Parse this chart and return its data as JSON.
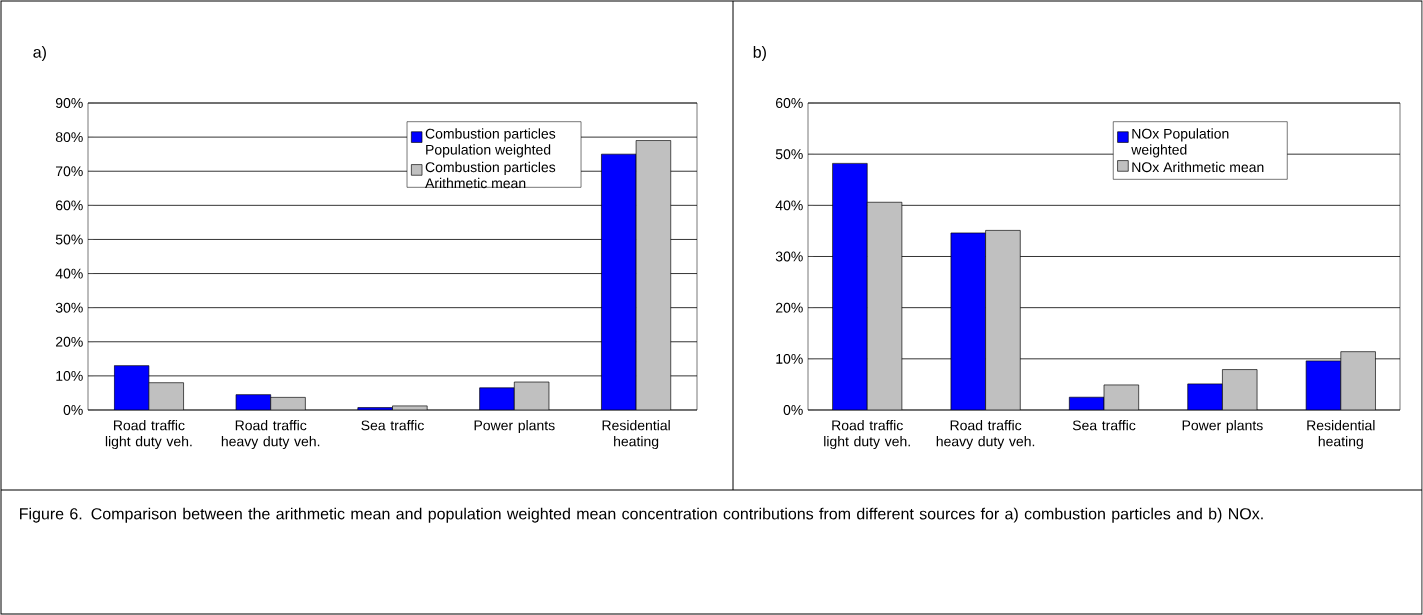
{
  "chart_data": [
    {
      "type": "bar",
      "title": "a)",
      "categories": [
        "Road traffic light duty veh.",
        "Road traffic heavy duty veh.",
        "Sea traffic",
        "Power plants",
        "Residential heating"
      ],
      "series": [
        {
          "name": "Combustion particles Population weighted",
          "color": "#0000ff",
          "values": [
            13,
            4.5,
            0.7,
            6.5,
            75
          ]
        },
        {
          "name": "Combustion particles Arithmetic mean",
          "color": "#c0c0c0",
          "values": [
            8,
            3.7,
            1.2,
            8.2,
            79
          ]
        }
      ],
      "ylim": [
        0,
        90
      ],
      "yticks": [
        {
          "value": 0,
          "label": "0%"
        },
        {
          "value": 10,
          "label": "10%"
        },
        {
          "value": 20,
          "label": "20%"
        },
        {
          "value": 30,
          "label": "30%"
        },
        {
          "value": 40,
          "label": "40%"
        },
        {
          "value": 50,
          "label": "50%"
        },
        {
          "value": 60,
          "label": "60%"
        },
        {
          "value": 70,
          "label": "70%"
        },
        {
          "value": 80,
          "label": "80%"
        },
        {
          "value": 90,
          "label": "90%"
        }
      ],
      "grid": "y",
      "legend": "top right",
      "annotations": [
        "Figure 6. Comparison between the arithmetic mean and population weighted mean concentration contributions from different sources for a) combustion particles and b) NOx."
      ]
    },
    {
      "type": "bar",
      "title": "b)",
      "categories": [
        "Road traffic light duty veh.",
        "Road traffic heavy duty veh.",
        "Sea traffic",
        "Power plants",
        "Residential heating"
      ],
      "series": [
        {
          "name": "NOx Population weighted",
          "color": "#0000ff",
          "values": [
            48.2,
            34.6,
            2.5,
            5.1,
            9.6
          ]
        },
        {
          "name": "NOx Arithmetic mean",
          "color": "#c0c0c0",
          "values": [
            40.6,
            35.1,
            4.9,
            7.9,
            11.4
          ]
        }
      ],
      "ylim": [
        0,
        60
      ],
      "yticks": [
        {
          "value": 0,
          "label": "0%"
        },
        {
          "value": 10,
          "label": "10%"
        },
        {
          "value": 20,
          "label": "20%"
        },
        {
          "value": 30,
          "label": "30%"
        },
        {
          "value": 40,
          "label": "40%"
        },
        {
          "value": 50,
          "label": "50%"
        },
        {
          "value": 60,
          "label": "60%"
        }
      ],
      "grid": "y",
      "legend": "top right"
    }
  ]
}
